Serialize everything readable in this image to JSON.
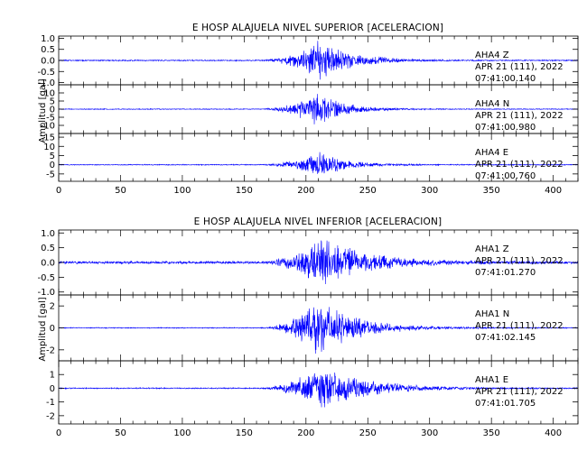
{
  "chart_data": [
    {
      "type": "line",
      "title": "E HOSP ALAJUELA NIVEL SUPERIOR [ACELERACION]",
      "ylabel": "Amplitud [gal]",
      "xlim": [
        0,
        420
      ],
      "x_ticks": [
        0,
        50,
        100,
        150,
        200,
        250,
        300,
        350,
        400
      ],
      "line_color": "#0000ff",
      "series": [
        {
          "name": "AHA4 Z",
          "station": "AHA4",
          "component": "Z",
          "date": "APR 21 (111), 2022",
          "time": "07:41:00.140",
          "ylim": [
            -1.1,
            1.1
          ],
          "y_ticks": [
            1.0,
            0.5,
            0.0,
            -0.5,
            -1.0
          ],
          "y_tick_labels": [
            "1.0",
            "0.5",
            "0.0",
            "-0.5",
            "-1.0"
          ],
          "envelope": {
            "noise": 0.03,
            "onset": 160,
            "peak_time": 212,
            "peak": 1.05,
            "decay": 25,
            "coda_end": 320
          }
        },
        {
          "name": "AHA4 N",
          "station": "AHA4",
          "component": "N",
          "date": "APR 21 (111), 2022",
          "time": "07:41:00.980",
          "ylim": [
            -15,
            15
          ],
          "y_ticks": [
            10,
            5,
            0,
            -5,
            -10
          ],
          "y_tick_labels": [
            "10",
            "5",
            "0",
            "-5",
            "-10"
          ],
          "envelope": {
            "noise": 0.3,
            "onset": 160,
            "peak_time": 210,
            "peak": 12,
            "decay": 20,
            "coda_end": 310
          }
        },
        {
          "name": "AHA4 E",
          "station": "AHA4",
          "component": "E",
          "date": "APR 21 (111), 2022",
          "time": "07:41:00.760",
          "ylim": [
            -9,
            17
          ],
          "y_ticks": [
            15,
            10,
            5,
            0,
            -5
          ],
          "y_tick_labels": [
            "15",
            "10",
            "5",
            "0",
            "-5"
          ],
          "envelope": {
            "noise": 0.3,
            "onset": 160,
            "peak_time": 210,
            "peak": 8,
            "decay": 22,
            "coda_end": 320
          }
        }
      ]
    },
    {
      "type": "line",
      "title": "E HOSP ALAJUELA NIVEL INFERIOR [ACELERACION]",
      "ylabel": "Amplitud [gal]",
      "xlim": [
        0,
        420
      ],
      "x_ticks": [
        0,
        50,
        100,
        150,
        200,
        250,
        300,
        350,
        400
      ],
      "line_color": "#0000ff",
      "series": [
        {
          "name": "AHA1 Z",
          "station": "AHA1",
          "component": "Z",
          "date": "APR 21 (111), 2022",
          "time": "07:41:01.270",
          "ylim": [
            -1.1,
            1.1
          ],
          "y_ticks": [
            1.0,
            0.5,
            0.0,
            -0.5,
            -1.0
          ],
          "y_tick_labels": [
            "1.0",
            "0.5",
            "0.0",
            "-0.5",
            "-1.0"
          ],
          "envelope": {
            "noise": 0.05,
            "onset": 160,
            "peak_time": 212,
            "peak": 1.0,
            "decay": 35,
            "coda_end": 340
          }
        },
        {
          "name": "AHA1 N",
          "station": "AHA1",
          "component": "N",
          "date": "APR 21 (111), 2022",
          "time": "07:41:02.145",
          "ylim": [
            -3,
            3
          ],
          "y_ticks": [
            2,
            0,
            -2
          ],
          "y_tick_labels": [
            "2",
            "0",
            "-2"
          ],
          "envelope": {
            "noise": 0.05,
            "onset": 160,
            "peak_time": 210,
            "peak": 2.9,
            "decay": 30,
            "coda_end": 330
          }
        },
        {
          "name": "AHA1 E",
          "station": "AHA1",
          "component": "E",
          "date": "APR 21 (111), 2022",
          "time": "07:41:01.705",
          "ylim": [
            -2.6,
            2
          ],
          "y_ticks": [
            1,
            0,
            -1,
            -2
          ],
          "y_tick_labels": [
            "1",
            "0",
            "-1",
            "-2"
          ],
          "envelope": {
            "noise": 0.05,
            "onset": 160,
            "peak_time": 212,
            "peak": 1.9,
            "decay": 35,
            "coda_end": 340
          }
        }
      ]
    }
  ]
}
